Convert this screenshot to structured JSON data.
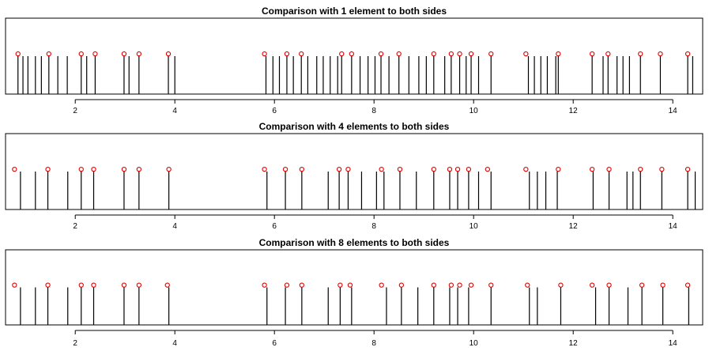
{
  "chart_data": [
    {
      "type": "spike",
      "title": "Comparison with 1 element to both sides",
      "xticks": [
        2,
        4,
        6,
        8,
        10,
        12,
        14
      ],
      "xlim": [
        0.6,
        14.6
      ],
      "spikes": [
        0.85,
        0.95,
        1.05,
        1.2,
        1.32,
        1.47,
        1.65,
        1.84,
        2.12,
        2.23,
        2.4,
        2.98,
        3.08,
        3.28,
        3.87,
        4.0,
        5.83,
        5.97,
        6.1,
        6.25,
        6.38,
        6.54,
        6.67,
        6.85,
        6.98,
        7.12,
        7.27,
        7.35,
        7.55,
        7.72,
        7.88,
        8.02,
        8.14,
        8.3,
        8.5,
        8.7,
        8.9,
        9.05,
        9.2,
        9.42,
        9.55,
        9.72,
        9.85,
        9.95,
        10.1,
        10.35,
        11.1,
        11.22,
        11.35,
        11.48,
        11.65,
        11.7,
        12.38,
        12.6,
        12.7,
        12.88,
        13.0,
        13.13,
        13.35,
        13.75,
        14.3,
        14.4
      ],
      "peaks": [
        0.85,
        1.47,
        2.12,
        2.4,
        2.98,
        3.28,
        3.87,
        5.8,
        6.25,
        6.54,
        7.35,
        7.55,
        8.14,
        8.5,
        9.2,
        9.55,
        9.72,
        9.95,
        10.35,
        11.05,
        11.7,
        12.38,
        12.7,
        13.35,
        13.75,
        14.3
      ]
    },
    {
      "type": "spike",
      "title": "Comparison with 4 elements to both sides",
      "xticks": [
        2,
        4,
        6,
        8,
        10,
        12,
        14
      ],
      "xlim": [
        0.6,
        14.6
      ],
      "spikes": [
        0.9,
        1.2,
        1.45,
        1.85,
        2.12,
        2.37,
        2.98,
        3.28,
        3.88,
        5.85,
        6.22,
        6.55,
        7.08,
        7.3,
        7.48,
        7.75,
        8.05,
        8.2,
        8.52,
        8.85,
        9.2,
        9.52,
        9.68,
        9.9,
        10.1,
        10.35,
        11.12,
        11.28,
        11.45,
        11.68,
        12.4,
        12.72,
        13.08,
        13.2,
        13.35,
        13.78,
        14.3,
        14.45
      ],
      "peaks": [
        0.78,
        1.45,
        2.12,
        2.37,
        2.98,
        3.28,
        3.88,
        5.8,
        6.22,
        6.55,
        7.3,
        7.48,
        8.15,
        8.52,
        9.2,
        9.52,
        9.68,
        9.9,
        10.28,
        11.05,
        11.7,
        12.38,
        12.72,
        13.35,
        13.78,
        14.3
      ]
    },
    {
      "type": "spike",
      "title": "Comparison with 8 elements to both sides",
      "xticks": [
        2,
        4,
        6,
        8,
        10,
        12,
        14
      ],
      "xlim": [
        0.6,
        14.6
      ],
      "spikes": [
        0.9,
        1.2,
        1.45,
        1.85,
        2.12,
        2.37,
        2.98,
        3.28,
        3.88,
        5.85,
        6.22,
        6.55,
        7.08,
        7.32,
        7.55,
        8.25,
        8.55,
        8.88,
        9.2,
        9.52,
        9.68,
        9.9,
        10.35,
        11.12,
        11.28,
        11.75,
        12.45,
        12.72,
        13.1,
        13.38,
        13.8,
        14.32
      ],
      "peaks": [
        0.78,
        1.45,
        2.12,
        2.37,
        2.98,
        3.28,
        3.85,
        5.8,
        6.25,
        6.55,
        7.32,
        7.52,
        8.15,
        8.55,
        9.2,
        9.55,
        9.72,
        9.95,
        10.35,
        11.08,
        11.75,
        12.38,
        12.72,
        13.38,
        13.8,
        14.3
      ]
    }
  ]
}
